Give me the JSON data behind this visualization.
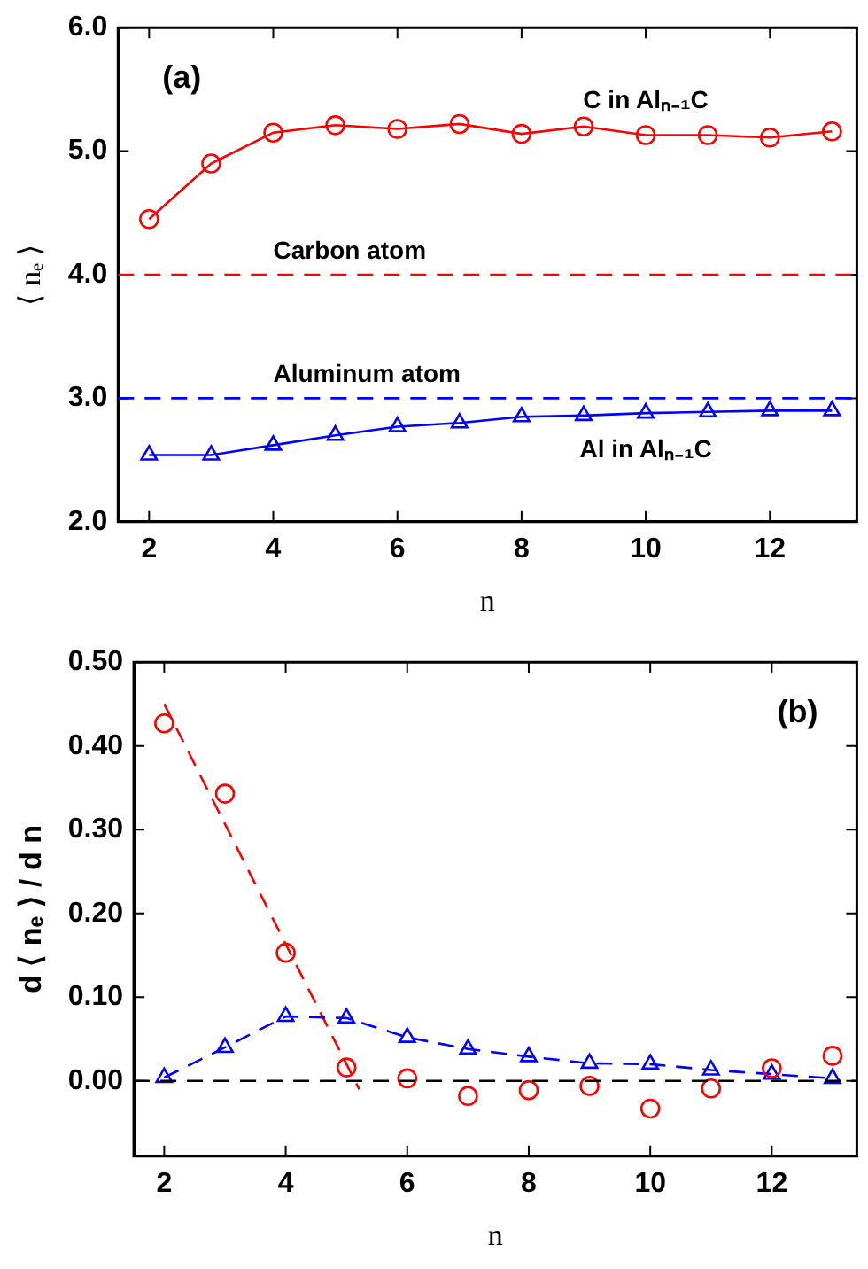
{
  "chart_data": [
    {
      "type": "line",
      "xlabel": "n",
      "ylabel": "⟨ nₑ ⟩",
      "x": [
        2,
        3,
        4,
        5,
        6,
        7,
        8,
        9,
        10,
        11,
        12,
        13
      ],
      "xlim": [
        1.5,
        13.4
      ],
      "xticks": [
        2,
        4,
        6,
        8,
        10,
        12
      ],
      "ylim": [
        2,
        6
      ],
      "yticks": [
        {
          "value": 2,
          "label": "2.0"
        },
        {
          "value": 3,
          "label": "3.0"
        },
        {
          "value": 4,
          "label": "4.0"
        },
        {
          "value": 5,
          "label": "5.0"
        },
        {
          "value": 6,
          "label": "6.0"
        }
      ],
      "series": [
        {
          "name": "C in Alₙ₋₁C",
          "color": "#ff0000",
          "marker": "circle",
          "line_style": "solid",
          "values": [
            4.45,
            4.9,
            5.15,
            5.21,
            5.18,
            5.22,
            5.14,
            5.2,
            5.13,
            5.13,
            5.11,
            5.16
          ]
        },
        {
          "name": "Al in Alₙ₋₁C",
          "color": "#0000ff",
          "marker": "triangle",
          "line_style": "solid",
          "values": [
            2.54,
            2.54,
            2.62,
            2.7,
            2.77,
            2.8,
            2.85,
            2.86,
            2.88,
            2.89,
            2.9,
            2.9
          ]
        }
      ],
      "ref_lines": [
        {
          "axis": "y",
          "value": 4,
          "label": "Carbon atom",
          "color": "#ff0000",
          "line_style": "dashed"
        },
        {
          "axis": "y",
          "value": 3,
          "label": "Aluminum atom",
          "color": "#0000ff",
          "line_style": "dashed"
        }
      ],
      "annotations": [
        "(a)"
      ],
      "grid": false,
      "legend": false
    },
    {
      "type": "scatter",
      "xlabel": "n",
      "ylabel": "d ⟨ nₑ ⟩ / d n",
      "x": [
        2,
        3,
        4,
        5,
        6,
        7,
        8,
        9,
        10,
        11,
        12,
        13
      ],
      "xlim": [
        1.5,
        13.4
      ],
      "xticks": [
        2,
        4,
        6,
        8,
        10,
        12
      ],
      "ylim": [
        -0.09,
        0.5
      ],
      "yticks": [
        {
          "value": 0,
          "label": "0.00"
        },
        {
          "value": 0.1,
          "label": "0.10"
        },
        {
          "value": 0.2,
          "label": "0.20"
        },
        {
          "value": 0.3,
          "label": "0.30"
        },
        {
          "value": 0.4,
          "label": "0.40"
        },
        {
          "value": 0.5,
          "label": "0.50"
        }
      ],
      "series": [
        {
          "color": "#ff0000",
          "marker": "circle",
          "values": [
            0.427,
            0.343,
            0.153,
            0.016,
            0.003,
            -0.018,
            -0.011,
            -0.006,
            -0.033,
            -0.009,
            0.015,
            0.03
          ]
        },
        {
          "type": "line",
          "color": "#0000ff",
          "marker": "triangle",
          "line_style": "dashed",
          "values": [
            0.004,
            0.04,
            0.077,
            0.075,
            0.052,
            0.038,
            0.029,
            0.021,
            0.02,
            0.013,
            0.008,
            0.003
          ]
        },
        {
          "type": "line",
          "color": "#ff0000",
          "marker": "none",
          "line_style": "dashed",
          "x": [
            2,
            5.21
          ],
          "values": [
            0.45,
            -0.01
          ]
        }
      ],
      "ref_lines": [
        {
          "axis": "y",
          "value": 0,
          "color": "#000000",
          "line_style": "dashed"
        }
      ],
      "annotations": [
        "(b)"
      ],
      "grid": false,
      "legend": false
    }
  ]
}
